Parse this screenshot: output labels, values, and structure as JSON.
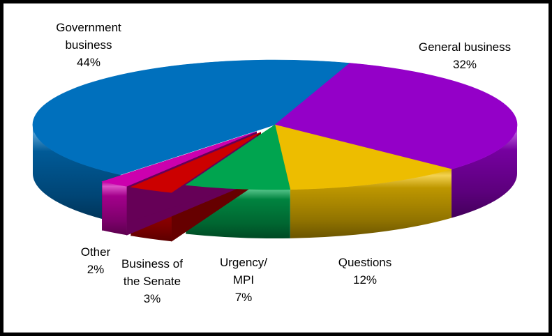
{
  "frame": {
    "background_color": "#FFFFFF",
    "border_color": "#000000"
  },
  "chart_data": {
    "type": "pie",
    "projection": "3d",
    "title": "",
    "legend": "none",
    "labels_outside": true,
    "direction": "clockwise",
    "start_angle_deg": -140.4,
    "slices": [
      {
        "label": "Government business",
        "pct": 44,
        "display": "Government\nbusiness\n44%",
        "color": "#0070BD",
        "exploded": false
      },
      {
        "label": "General business",
        "pct": 32,
        "display": "General business\n32%",
        "color": "#9400C8",
        "exploded": false
      },
      {
        "label": "Questions",
        "pct": 12,
        "display": "Questions\n12%",
        "color": "#EDBD00",
        "exploded": false
      },
      {
        "label": "Urgency/MPI",
        "pct": 7,
        "display": "Urgency/\nMPI\n7%",
        "color": "#00A44F",
        "exploded": false
      },
      {
        "label": "Business of the Senate",
        "pct": 3,
        "display": "Business of\nthe Senate\n3%",
        "color": "#CC0000",
        "exploded": true
      },
      {
        "label": "Other",
        "pct": 2,
        "display": "Other\n2%",
        "color": "#CC00AE",
        "exploded": true
      }
    ]
  }
}
